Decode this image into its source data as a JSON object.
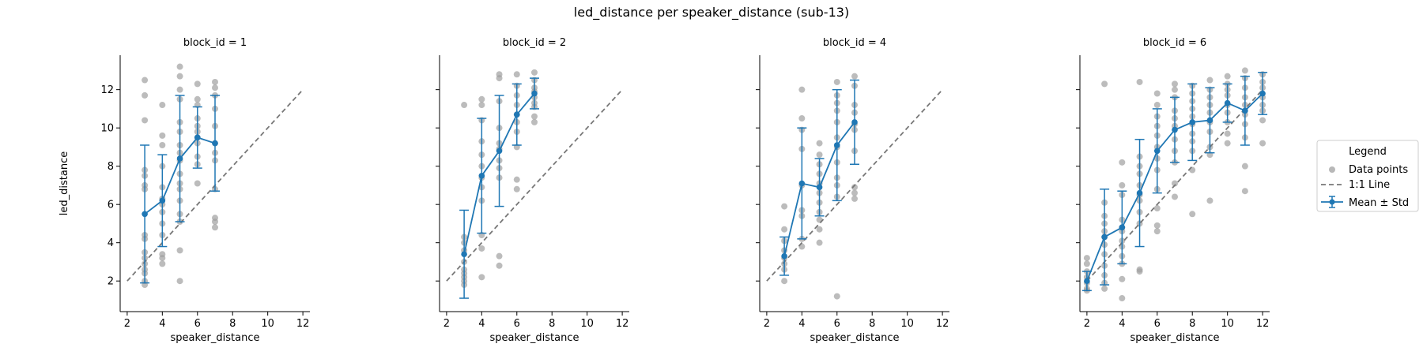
{
  "figure": {
    "title": "led_distance per speaker_distance (sub-13)"
  },
  "legend": {
    "title": "Legend",
    "entries": [
      "Data points",
      "1:1 Line",
      "Mean ± Std"
    ]
  },
  "colors": {
    "points": "#a0a0a0",
    "mean": "#1f77b4",
    "identity": "#777777",
    "axis": "#000000"
  },
  "chart_data": [
    {
      "type": "scatter",
      "title": "block_id = 1",
      "xlabel": "speaker_distance",
      "ylabel": "led_distance",
      "xlim": [
        1.6,
        12.4
      ],
      "ylim": [
        0.4,
        13.8
      ],
      "xticks": [
        2,
        4,
        6,
        8,
        10,
        12
      ],
      "yticks": [
        2,
        4,
        6,
        8,
        10,
        12
      ],
      "points": [
        [
          3,
          12.5
        ],
        [
          3,
          11.7
        ],
        [
          3,
          10.4
        ],
        [
          3,
          7.8
        ],
        [
          3,
          7.5
        ],
        [
          3,
          7.0
        ],
        [
          3,
          6.8
        ],
        [
          3,
          4.4
        ],
        [
          3,
          4.2
        ],
        [
          3,
          3.5
        ],
        [
          3,
          3.2
        ],
        [
          3,
          2.9
        ],
        [
          3,
          2.6
        ],
        [
          3,
          2.4
        ],
        [
          3,
          2.0
        ],
        [
          3,
          1.8
        ],
        [
          4,
          11.2
        ],
        [
          4,
          9.6
        ],
        [
          4,
          9.1
        ],
        [
          4,
          8.0
        ],
        [
          4,
          6.9
        ],
        [
          4,
          6.3
        ],
        [
          4,
          6.0
        ],
        [
          4,
          5.6
        ],
        [
          4,
          5.0
        ],
        [
          4,
          4.4
        ],
        [
          4,
          3.4
        ],
        [
          4,
          3.2
        ],
        [
          4,
          2.9
        ],
        [
          5,
          13.2
        ],
        [
          5,
          12.7
        ],
        [
          5,
          12.0
        ],
        [
          5,
          11.5
        ],
        [
          5,
          10.3
        ],
        [
          5,
          9.8
        ],
        [
          5,
          9.1
        ],
        [
          5,
          8.7
        ],
        [
          5,
          8.3
        ],
        [
          5,
          7.6
        ],
        [
          5,
          7.1
        ],
        [
          5,
          6.8
        ],
        [
          5,
          6.2
        ],
        [
          5,
          5.5
        ],
        [
          5,
          5.1
        ],
        [
          5,
          3.6
        ],
        [
          5,
          2.0
        ],
        [
          6,
          12.3
        ],
        [
          6,
          11.5
        ],
        [
          6,
          11.2
        ],
        [
          6,
          10.5
        ],
        [
          6,
          10.1
        ],
        [
          6,
          9.8
        ],
        [
          6,
          9.5
        ],
        [
          6,
          9.2
        ],
        [
          6,
          8.5
        ],
        [
          6,
          8.1
        ],
        [
          6,
          7.1
        ],
        [
          7,
          12.4
        ],
        [
          7,
          12.1
        ],
        [
          7,
          11.7
        ],
        [
          7,
          11.0
        ],
        [
          7,
          10.1
        ],
        [
          7,
          9.2
        ],
        [
          7,
          8.7
        ],
        [
          7,
          8.3
        ],
        [
          7,
          6.8
        ],
        [
          7,
          5.3
        ],
        [
          7,
          5.1
        ],
        [
          7,
          4.8
        ]
      ],
      "mean": [
        [
          3,
          5.5
        ],
        [
          4,
          6.2
        ],
        [
          5,
          8.4
        ],
        [
          6,
          9.5
        ],
        [
          7,
          9.2
        ]
      ],
      "std": [
        3.6,
        2.4,
        3.3,
        1.6,
        2.5
      ],
      "identity_line": [
        2,
        12
      ]
    },
    {
      "type": "scatter",
      "title": "block_id = 2",
      "xlabel": "speaker_distance",
      "ylabel": "",
      "xlim": [
        1.6,
        12.4
      ],
      "ylim": [
        0.4,
        13.8
      ],
      "xticks": [
        2,
        4,
        6,
        8,
        10,
        12
      ],
      "yticks": [
        2,
        4,
        6,
        8,
        10,
        12
      ],
      "points": [
        [
          3,
          11.2
        ],
        [
          3,
          4.3
        ],
        [
          3,
          4.0
        ],
        [
          3,
          3.6
        ],
        [
          3,
          3.0
        ],
        [
          3,
          2.6
        ],
        [
          3,
          2.4
        ],
        [
          3,
          2.2
        ],
        [
          3,
          2.0
        ],
        [
          3,
          1.8
        ],
        [
          4,
          11.5
        ],
        [
          4,
          11.2
        ],
        [
          4,
          10.4
        ],
        [
          4,
          9.3
        ],
        [
          4,
          8.6
        ],
        [
          4,
          8.0
        ],
        [
          4,
          7.4
        ],
        [
          4,
          6.9
        ],
        [
          4,
          6.2
        ],
        [
          4,
          4.4
        ],
        [
          4,
          3.7
        ],
        [
          4,
          2.2
        ],
        [
          5,
          12.8
        ],
        [
          5,
          12.6
        ],
        [
          5,
          11.4
        ],
        [
          5,
          10.0
        ],
        [
          5,
          9.2
        ],
        [
          5,
          8.9
        ],
        [
          5,
          8.3
        ],
        [
          5,
          7.9
        ],
        [
          5,
          7.4
        ],
        [
          5,
          3.3
        ],
        [
          5,
          2.8
        ],
        [
          6,
          12.8
        ],
        [
          6,
          12.2
        ],
        [
          6,
          11.7
        ],
        [
          6,
          11.2
        ],
        [
          6,
          10.7
        ],
        [
          6,
          10.3
        ],
        [
          6,
          9.8
        ],
        [
          6,
          9.0
        ],
        [
          6,
          7.3
        ],
        [
          6,
          6.8
        ],
        [
          7,
          12.9
        ],
        [
          7,
          12.5
        ],
        [
          7,
          12.1
        ],
        [
          7,
          11.9
        ],
        [
          7,
          11.6
        ],
        [
          7,
          11.3
        ],
        [
          7,
          11.1
        ],
        [
          7,
          10.6
        ],
        [
          7,
          10.3
        ]
      ],
      "mean": [
        [
          3,
          3.4
        ],
        [
          4,
          7.5
        ],
        [
          5,
          8.8
        ],
        [
          6,
          10.7
        ],
        [
          7,
          11.8
        ]
      ],
      "std": [
        2.3,
        3.0,
        2.9,
        1.6,
        0.8
      ],
      "identity_line": [
        2,
        12
      ]
    },
    {
      "type": "scatter",
      "title": "block_id = 4",
      "xlabel": "speaker_distance",
      "ylabel": "",
      "xlim": [
        1.6,
        12.4
      ],
      "ylim": [
        0.4,
        13.8
      ],
      "xticks": [
        2,
        4,
        6,
        8,
        10,
        12
      ],
      "yticks": [
        2,
        4,
        6,
        8,
        10,
        12
      ],
      "points": [
        [
          3,
          5.9
        ],
        [
          3,
          4.7
        ],
        [
          3,
          4.1
        ],
        [
          3,
          3.6
        ],
        [
          3,
          3.2
        ],
        [
          3,
          2.9
        ],
        [
          3,
          2.6
        ],
        [
          3,
          2.0
        ],
        [
          4,
          12.0
        ],
        [
          4,
          10.5
        ],
        [
          4,
          9.9
        ],
        [
          4,
          8.9
        ],
        [
          4,
          7.0
        ],
        [
          4,
          5.7
        ],
        [
          4,
          5.4
        ],
        [
          4,
          4.2
        ],
        [
          4,
          3.8
        ],
        [
          5,
          9.2
        ],
        [
          5,
          8.6
        ],
        [
          5,
          8.1
        ],
        [
          5,
          7.6
        ],
        [
          5,
          7.1
        ],
        [
          5,
          6.6
        ],
        [
          5,
          6.1
        ],
        [
          5,
          5.6
        ],
        [
          5,
          5.2
        ],
        [
          5,
          4.7
        ],
        [
          5,
          4.0
        ],
        [
          6,
          12.4
        ],
        [
          6,
          11.7
        ],
        [
          6,
          11.3
        ],
        [
          6,
          10.9
        ],
        [
          6,
          10.3
        ],
        [
          6,
          9.5
        ],
        [
          6,
          9.0
        ],
        [
          6,
          8.2
        ],
        [
          6,
          7.4
        ],
        [
          6,
          7.0
        ],
        [
          6,
          6.4
        ],
        [
          6,
          1.2
        ],
        [
          7,
          12.7
        ],
        [
          7,
          12.2
        ],
        [
          7,
          11.2
        ],
        [
          7,
          10.8
        ],
        [
          7,
          10.2
        ],
        [
          7,
          9.9
        ],
        [
          7,
          8.8
        ],
        [
          7,
          6.9
        ],
        [
          7,
          6.6
        ],
        [
          7,
          6.3
        ]
      ],
      "mean": [
        [
          3,
          3.3
        ],
        [
          4,
          7.1
        ],
        [
          5,
          6.9
        ],
        [
          6,
          9.1
        ],
        [
          7,
          10.3
        ]
      ],
      "std": [
        1.0,
        2.9,
        1.5,
        2.9,
        2.2
      ],
      "identity_line": [
        2,
        12
      ]
    },
    {
      "type": "scatter",
      "title": "block_id = 6",
      "xlabel": "speaker_distance",
      "ylabel": "",
      "xlim": [
        1.6,
        12.4
      ],
      "ylim": [
        0.4,
        13.8
      ],
      "xticks": [
        2,
        4,
        6,
        8,
        10,
        12
      ],
      "yticks": [
        2,
        4,
        6,
        8,
        10,
        12
      ],
      "points": [
        [
          2,
          3.2
        ],
        [
          2,
          2.9
        ],
        [
          2,
          2.5
        ],
        [
          2,
          2.2
        ],
        [
          2,
          1.9
        ],
        [
          2,
          1.6
        ],
        [
          2,
          1.5
        ],
        [
          3,
          12.3
        ],
        [
          3,
          6.1
        ],
        [
          3,
          5.4
        ],
        [
          3,
          5.0
        ],
        [
          3,
          4.6
        ],
        [
          3,
          4.3
        ],
        [
          3,
          3.9
        ],
        [
          3,
          3.4
        ],
        [
          3,
          2.8
        ],
        [
          3,
          2.3
        ],
        [
          3,
          1.9
        ],
        [
          3,
          1.6
        ],
        [
          4,
          8.2
        ],
        [
          4,
          7.0
        ],
        [
          4,
          6.5
        ],
        [
          4,
          5.2
        ],
        [
          4,
          4.8
        ],
        [
          4,
          4.6
        ],
        [
          4,
          4.1
        ],
        [
          4,
          3.8
        ],
        [
          4,
          3.3
        ],
        [
          4,
          2.9
        ],
        [
          4,
          2.1
        ],
        [
          4,
          1.1
        ],
        [
          5,
          12.4
        ],
        [
          5,
          8.5
        ],
        [
          5,
          8.0
        ],
        [
          5,
          7.6
        ],
        [
          5,
          7.0
        ],
        [
          5,
          6.5
        ],
        [
          5,
          6.2
        ],
        [
          5,
          5.6
        ],
        [
          5,
          5.0
        ],
        [
          5,
          2.6
        ],
        [
          5,
          2.5
        ],
        [
          6,
          11.8
        ],
        [
          6,
          11.2
        ],
        [
          6,
          10.6
        ],
        [
          6,
          10.1
        ],
        [
          6,
          9.6
        ],
        [
          6,
          9.0
        ],
        [
          6,
          8.4
        ],
        [
          6,
          7.8
        ],
        [
          6,
          6.8
        ],
        [
          6,
          5.8
        ],
        [
          6,
          4.9
        ],
        [
          6,
          4.6
        ],
        [
          7,
          12.3
        ],
        [
          7,
          12.0
        ],
        [
          7,
          11.6
        ],
        [
          7,
          10.9
        ],
        [
          7,
          10.5
        ],
        [
          7,
          10.1
        ],
        [
          7,
          9.4
        ],
        [
          7,
          8.8
        ],
        [
          7,
          8.2
        ],
        [
          7,
          7.1
        ],
        [
          7,
          6.4
        ],
        [
          8,
          12.2
        ],
        [
          8,
          11.8
        ],
        [
          8,
          11.4
        ],
        [
          8,
          11.0
        ],
        [
          8,
          10.6
        ],
        [
          8,
          10.2
        ],
        [
          8,
          9.7
        ],
        [
          8,
          9.3
        ],
        [
          8,
          8.8
        ],
        [
          8,
          7.8
        ],
        [
          8,
          5.5
        ],
        [
          9,
          12.5
        ],
        [
          9,
          12.0
        ],
        [
          9,
          11.6
        ],
        [
          9,
          11.2
        ],
        [
          9,
          10.8
        ],
        [
          9,
          10.3
        ],
        [
          9,
          9.8
        ],
        [
          9,
          9.0
        ],
        [
          9,
          8.6
        ],
        [
          9,
          6.2
        ],
        [
          10,
          12.7
        ],
        [
          10,
          12.3
        ],
        [
          10,
          12.0
        ],
        [
          10,
          11.7
        ],
        [
          10,
          11.2
        ],
        [
          10,
          10.8
        ],
        [
          10,
          10.3
        ],
        [
          10,
          9.7
        ],
        [
          10,
          9.2
        ],
        [
          11,
          13.0
        ],
        [
          11,
          12.6
        ],
        [
          11,
          12.1
        ],
        [
          11,
          11.6
        ],
        [
          11,
          11.2
        ],
        [
          11,
          10.7
        ],
        [
          11,
          10.2
        ],
        [
          11,
          9.5
        ],
        [
          11,
          8.0
        ],
        [
          11,
          6.7
        ],
        [
          12,
          12.8
        ],
        [
          12,
          12.4
        ],
        [
          12,
          12.1
        ],
        [
          12,
          11.6
        ],
        [
          12,
          11.2
        ],
        [
          12,
          10.9
        ],
        [
          12,
          10.4
        ],
        [
          12,
          9.2
        ]
      ],
      "mean": [
        [
          2,
          2.0
        ],
        [
          3,
          4.3
        ],
        [
          4,
          4.8
        ],
        [
          5,
          6.6
        ],
        [
          6,
          8.8
        ],
        [
          7,
          9.9
        ],
        [
          8,
          10.3
        ],
        [
          9,
          10.4
        ],
        [
          10,
          11.3
        ],
        [
          11,
          10.9
        ],
        [
          12,
          11.8
        ]
      ],
      "std": [
        0.5,
        2.5,
        1.9,
        2.8,
        2.2,
        1.7,
        2.0,
        1.7,
        1.0,
        1.8,
        1.1
      ],
      "identity_line": [
        2,
        12
      ]
    }
  ]
}
